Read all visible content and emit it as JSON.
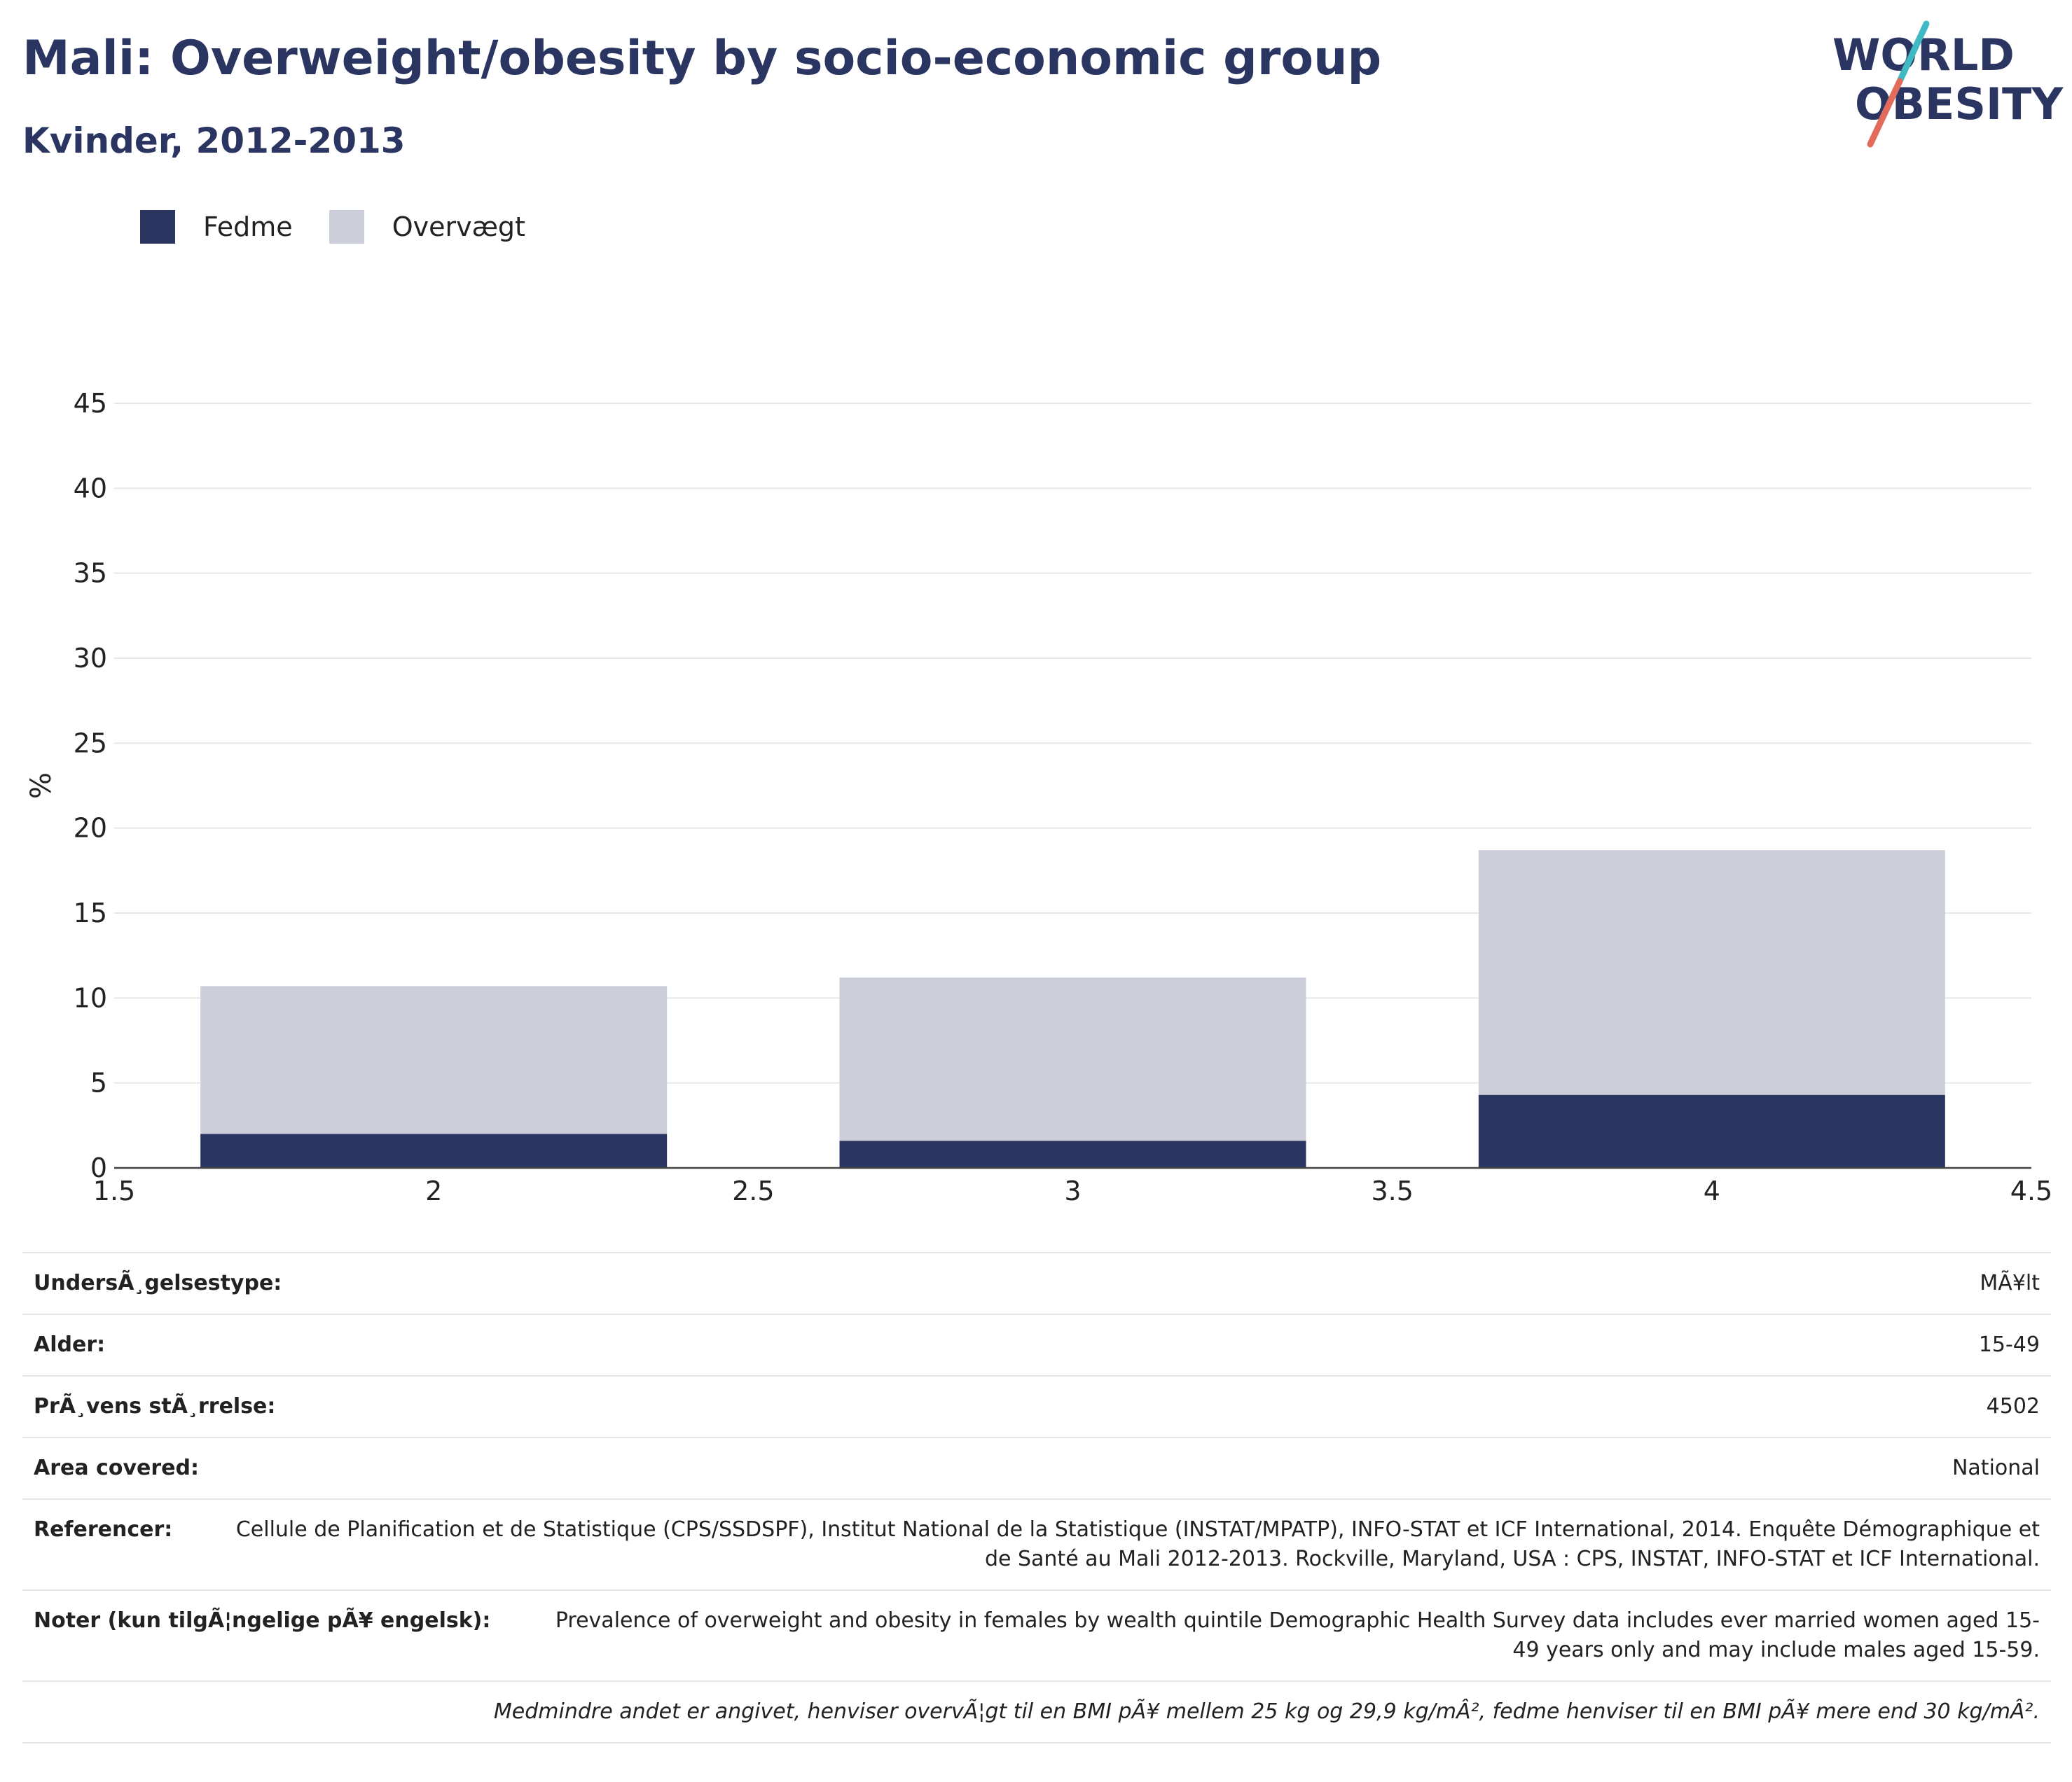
{
  "header": {
    "title": "Mali: Overweight/obesity by socio-economic group",
    "subtitle": "Kvinder, 2012-2013",
    "logo_text_line1": "WORLD",
    "logo_text_line2": "OBESITY"
  },
  "colors": {
    "obesity": "#2a3561",
    "overweight": "#cbcdd9",
    "logo_text": "#2b3562",
    "logo_teal": "#3fb9c4",
    "logo_coral": "#e36b5c",
    "grid": "#e6e6e6",
    "axis": "#444444"
  },
  "chart_data": {
    "type": "bar",
    "stacked": true,
    "x": [
      2,
      3,
      4
    ],
    "series": [
      {
        "name": "Fedme",
        "values": [
          2.0,
          1.6,
          4.3
        ]
      },
      {
        "name": "Overvægt",
        "values": [
          8.7,
          9.6,
          14.4
        ]
      }
    ],
    "xlim": [
      1.5,
      4.5
    ],
    "xticks": [
      "1.5",
      "2",
      "2.5",
      "3",
      "3.5",
      "4",
      "4.5"
    ],
    "ylim": [
      0,
      45
    ],
    "yticks": [
      "0",
      "5",
      "10",
      "15",
      "20",
      "25",
      "30",
      "35",
      "40",
      "45"
    ],
    "ylabel": "%",
    "xlabel": "",
    "grid": true,
    "legend_position": "top-left"
  },
  "info": {
    "rows": [
      {
        "key": "UndersÃ¸gelsestype:",
        "value": "MÃ¥lt"
      },
      {
        "key": "Alder:",
        "value": "15-49"
      },
      {
        "key": "PrÃ¸vens stÃ¸rrelse:",
        "value": "4502"
      },
      {
        "key": "Area covered:",
        "value": "National"
      },
      {
        "key": "Referencer:",
        "value": "Cellule de Planification et de Statistique (CPS/SSDSPF), Institut National de la Statistique (INSTAT/MPATP), INFO-STAT et ICF International, 2014. Enquête Démographique et de Santé au Mali 2012-2013. Rockville, Maryland, USA : CPS, INSTAT, INFO-STAT et ICF International."
      },
      {
        "key": "Noter (kun tilgÃ¦ngelige pÃ¥ engelsk):",
        "value": "Prevalence of overweight and obesity in females by wealth quintile Demographic Health Survey data includes ever married women aged 15-49 years only and may include males aged 15-59."
      }
    ],
    "footnote": "Medmindre andet er angivet, henviser overvÃ¦gt til en BMI pÃ¥ mellem 25 kg og 29,9 kg/mÂ², fedme henviser til en BMI pÃ¥ mere end 30 kg/mÂ²."
  }
}
